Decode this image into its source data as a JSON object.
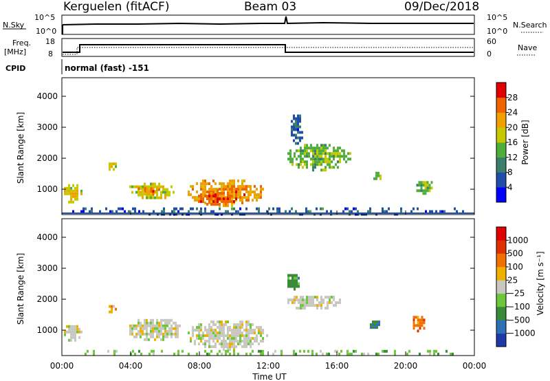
{
  "header": {
    "station": "Kerguelen (fitACF)",
    "beam": "Beam 03",
    "date": "09/Dec/2018"
  },
  "strips": {
    "nsky_label": "N.Sky",
    "nsky_ticks": [
      "10^5",
      "10^0"
    ],
    "nsearch_label": "N.Search",
    "nsearch_ticks": [
      "10^5",
      "10^0"
    ],
    "freq_label_1": "Freq.",
    "freq_label_2": "[MHz]",
    "freq_ticks": [
      "18",
      "8"
    ],
    "nave_label": "Nave",
    "nave_ticks": [
      "60",
      "0"
    ],
    "cpid_label": "CPID",
    "cpid_value": "normal (fast) -151"
  },
  "chart_data": [
    {
      "type": "heatmap",
      "name": "power",
      "ylabel": "Slant Range [km]",
      "yticks": [
        1000,
        2000,
        3000,
        4000
      ],
      "ylim": [
        180,
        4600
      ],
      "colorbar_label": "Power [dB]",
      "colorbar_ticks": [
        "28",
        "24",
        "20",
        "16",
        "12",
        "8",
        "4"
      ],
      "colors": [
        "#0000ff",
        "#1e4ea8",
        "#3a7f6a",
        "#4fae3a",
        "#c8c800",
        "#f0a000",
        "#f06400",
        "#e00000"
      ],
      "regions": [
        {
          "t": [
            0.0,
            1.1
          ],
          "r": [
            600,
            1250
          ],
          "level": 4
        },
        {
          "t": [
            2.6,
            3.2
          ],
          "r": [
            1650,
            1950
          ],
          "level": 4
        },
        {
          "t": [
            3.8,
            6.5
          ],
          "r": [
            700,
            1300
          ],
          "level": 4
        },
        {
          "t": [
            4.3,
            5.6
          ],
          "r": [
            850,
            1150
          ],
          "level": 5
        },
        {
          "t": [
            7.2,
            11.8
          ],
          "r": [
            500,
            1400
          ],
          "level": 5
        },
        {
          "t": [
            7.8,
            10.2
          ],
          "r": [
            500,
            1000
          ],
          "level": 6
        },
        {
          "t": [
            13.0,
            16.8
          ],
          "r": [
            1650,
            2550
          ],
          "level": 3
        },
        {
          "t": [
            13.2,
            14.0
          ],
          "r": [
            2500,
            3500
          ],
          "level": 1
        },
        {
          "t": [
            18.0,
            18.6
          ],
          "r": [
            1300,
            1650
          ],
          "level": 3
        },
        {
          "t": [
            20.5,
            21.6
          ],
          "r": [
            900,
            1350
          ],
          "level": 3
        },
        {
          "t": [
            0.0,
            24.0
          ],
          "r": [
            200,
            500
          ],
          "level": 1
        }
      ]
    },
    {
      "type": "heatmap",
      "name": "velocity",
      "ylabel": "Slant Range [km]",
      "xlabel": "Time UT",
      "xticks": [
        "00:00",
        "04:00",
        "08:00",
        "12:00",
        "16:00",
        "20:00",
        "00:00"
      ],
      "yticks": [
        1000,
        2000,
        3000,
        4000
      ],
      "ylim": [
        180,
        4600
      ],
      "colorbar_label": "Velocity [m s⁻¹]",
      "colorbar_ticks": [
        "1000",
        "500",
        "100",
        "25",
        "−25",
        "−100",
        "−500",
        "−1000"
      ],
      "colors": [
        "#1e3aa8",
        "#2f6fb5",
        "#3a8a3a",
        "#6cc83a",
        "#c8c8c0",
        "#f0b000",
        "#f07000",
        "#e03000",
        "#e00000"
      ],
      "regions": [
        {
          "t": [
            0.0,
            1.1
          ],
          "r": [
            700,
            1250
          ],
          "level": 4
        },
        {
          "t": [
            2.6,
            3.1
          ],
          "r": [
            1600,
            1900
          ],
          "level": 5
        },
        {
          "t": [
            3.8,
            7.0
          ],
          "r": [
            650,
            1450
          ],
          "level": 4
        },
        {
          "t": [
            7.2,
            11.9
          ],
          "r": [
            400,
            1400
          ],
          "level": 4
        },
        {
          "t": [
            13.0,
            16.2
          ],
          "r": [
            1700,
            2200
          ],
          "level": 4
        },
        {
          "t": [
            13.0,
            13.8
          ],
          "r": [
            2300,
            2900
          ],
          "level": 2
        },
        {
          "t": [
            17.8,
            18.5
          ],
          "r": [
            1050,
            1400
          ],
          "level": 2
        },
        {
          "t": [
            20.3,
            21.2
          ],
          "r": [
            1000,
            1550
          ],
          "level": 6
        },
        {
          "t": [
            0.0,
            24.0
          ],
          "r": [
            200,
            450
          ],
          "level": 3
        }
      ]
    }
  ]
}
